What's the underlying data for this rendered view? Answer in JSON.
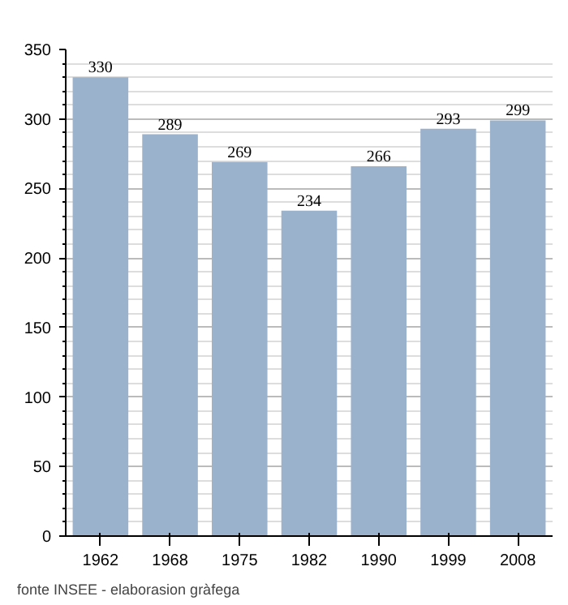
{
  "chart_data": {
    "type": "bar",
    "categories": [
      "1962",
      "1968",
      "1975",
      "1982",
      "1990",
      "1999",
      "2008"
    ],
    "values": [
      330,
      289,
      269,
      234,
      266,
      293,
      299
    ],
    "color": "#9bb2cd",
    "ylim": [
      0,
      350
    ],
    "yticks": [
      0,
      50,
      100,
      150,
      200,
      250,
      300,
      350
    ],
    "grid": "y",
    "data_labels": true,
    "annotations": [
      "fonte INSEE - elaborasion gràfega"
    ]
  }
}
